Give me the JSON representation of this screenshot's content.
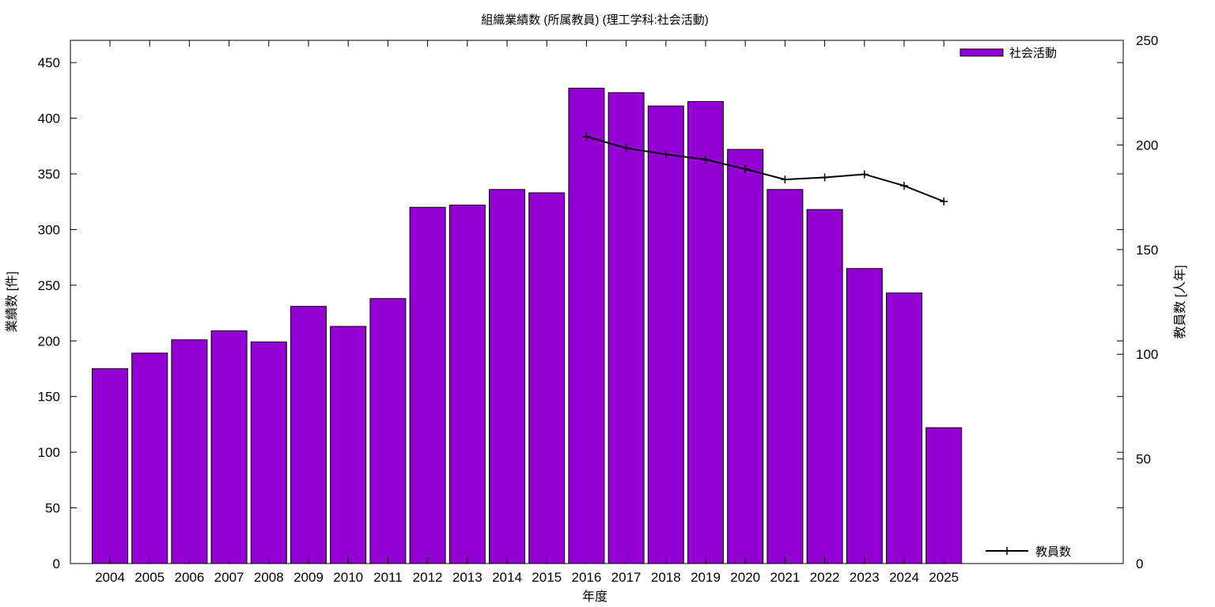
{
  "chart_data": {
    "type": "bar",
    "title": "組織業績数 (所属教員) (理工学科:社会活動)",
    "xlabel": "年度",
    "ylabel": "業績数 [件]",
    "y2label": "教員数 [人年]",
    "categories": [
      "2004",
      "2005",
      "2006",
      "2007",
      "2008",
      "2009",
      "2010",
      "2011",
      "2012",
      "2013",
      "2014",
      "2015",
      "2016",
      "2017",
      "2018",
      "2019",
      "2020",
      "2021",
      "2022",
      "2023",
      "2024",
      "2025"
    ],
    "ylim": [
      0,
      470
    ],
    "y2lim": [
      0,
      250
    ],
    "yticks": [
      0,
      50,
      100,
      150,
      200,
      250,
      300,
      350,
      400,
      450
    ],
    "y2ticks": [
      0,
      50,
      100,
      150,
      200,
      250
    ],
    "series": [
      {
        "name": "社会活動",
        "type": "bar",
        "axis": "left",
        "color": "#9400d3",
        "values": [
          175,
          189,
          201,
          209,
          199,
          231,
          213,
          238,
          320,
          322,
          336,
          333,
          427,
          423,
          411,
          415,
          372,
          336,
          318,
          265,
          243,
          122
        ]
      },
      {
        "name": "教員数",
        "type": "line",
        "axis": "right",
        "color": "#000000",
        "x": [
          "2016",
          "2017",
          "2018",
          "2019",
          "2020",
          "2021",
          "2022",
          "2023",
          "2024",
          "2025"
        ],
        "values": [
          204,
          198.5,
          195.5,
          193,
          188.5,
          183.5,
          184.5,
          186,
          180.5,
          173
        ]
      }
    ],
    "legend": [
      {
        "label": "社会活動",
        "position": "top-right"
      },
      {
        "label": "教員数",
        "position": "bottom-right"
      }
    ],
    "grid": false
  }
}
